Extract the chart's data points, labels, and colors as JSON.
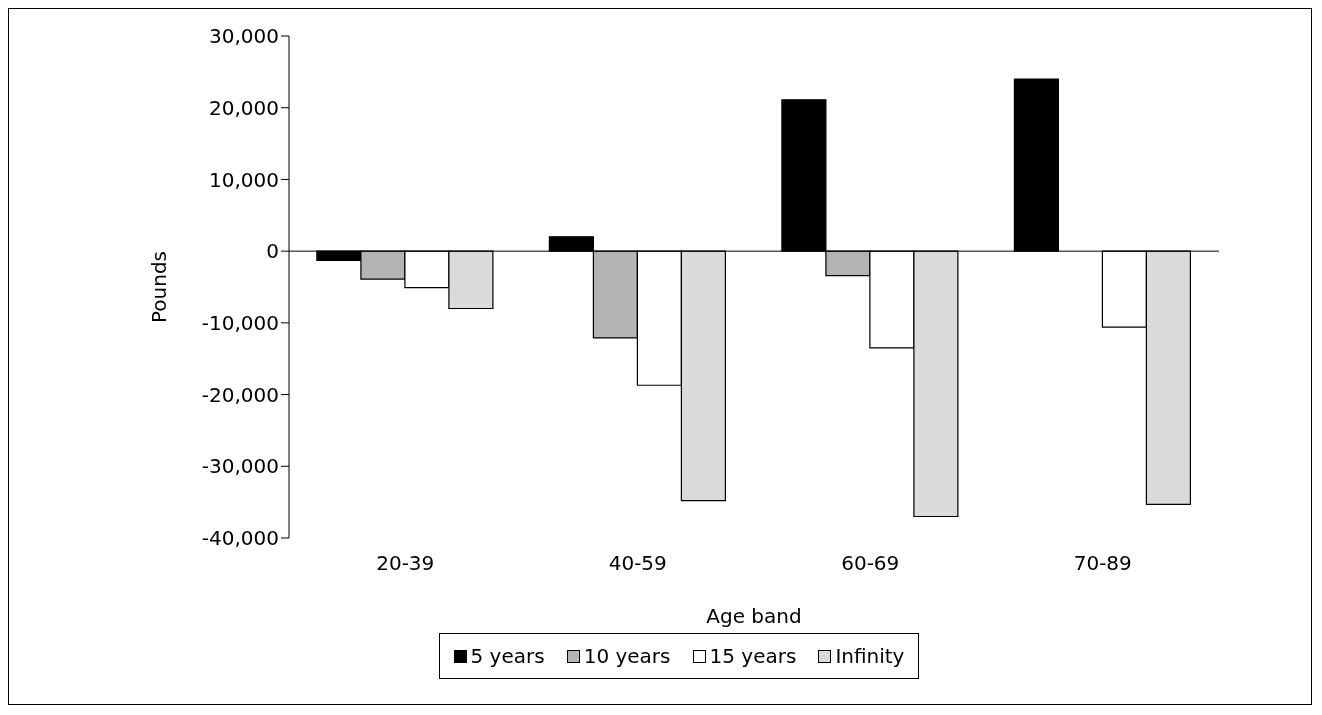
{
  "chart_data": {
    "type": "bar",
    "xlabel": "Age band",
    "ylabel": "Pounds",
    "categories": [
      "20-39",
      "40-59",
      "60-69",
      "70-89"
    ],
    "series": [
      {
        "name": "5 years",
        "color": "#000000",
        "values": [
          -1300,
          2000,
          21100,
          24000
        ]
      },
      {
        "name": "10 years",
        "color": "#b2b3b4",
        "values": [
          -3900,
          -12100,
          -3400,
          null
        ]
      },
      {
        "name": "15 years",
        "color": "#ffffff",
        "values": [
          -5100,
          -18700,
          -13500,
          -10600
        ]
      },
      {
        "name": "Infinity",
        "color": "#d9dadb",
        "values": [
          -8000,
          -34800,
          -37000,
          -35300
        ]
      }
    ],
    "ylim": [
      -40000,
      30000
    ],
    "yticks": [
      {
        "value": -40000,
        "label": "-40,000"
      },
      {
        "value": -30000,
        "label": "-30,000"
      },
      {
        "value": -20000,
        "label": "-20,000"
      },
      {
        "value": -10000,
        "label": "-10,000"
      },
      0,
      {
        "value": 10000,
        "label": "10,000"
      },
      {
        "value": 20000,
        "label": "20,000"
      },
      {
        "value": 30000,
        "label": "30,000"
      }
    ],
    "legend": "bottom"
  }
}
